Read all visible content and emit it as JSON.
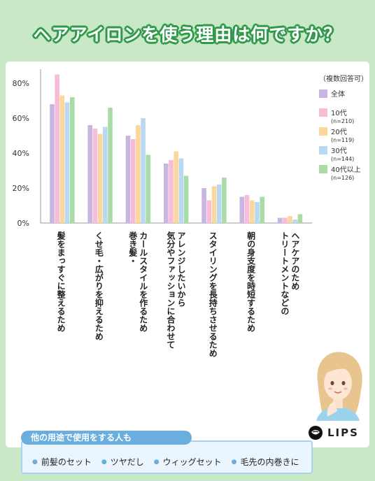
{
  "title": "ヘアアイロンを使う理由は何ですか？",
  "chart_data": {
    "type": "bar",
    "yticks": [
      "80%",
      "60%",
      "40%",
      "20%",
      "0%"
    ],
    "ylim": [
      0,
      90
    ],
    "legend": {
      "heading": "（複数回答可）",
      "placement": "top-right"
    },
    "categories": [
      [
        "髪をまっすぐに整えるため"
      ],
      [
        "くせ毛・広がりを抑えるため"
      ],
      [
        "巻き髪・",
        "カールスタイルを作るため"
      ],
      [
        "気分やファッションに合わせて",
        "アレンジしたいから"
      ],
      [
        "スタイリングを長持ちさせるため"
      ],
      [
        "朝の身支度を時短するため"
      ],
      [
        "トリートメントなどの",
        "ヘアケアのため"
      ]
    ],
    "series": [
      {
        "name": "全体",
        "sub": "",
        "color": "#c8b6e0",
        "values": [
          68,
          56,
          50,
          34,
          20,
          15,
          3
        ]
      },
      {
        "name": "10代",
        "sub": "(n=210)",
        "color": "#f7bcd8",
        "values": [
          85,
          54,
          48,
          36,
          13,
          16,
          3
        ]
      },
      {
        "name": "20代",
        "sub": "(n=119)",
        "color": "#fbd79b",
        "values": [
          73,
          51,
          56,
          41,
          21,
          13,
          4
        ]
      },
      {
        "name": "30代",
        "sub": "(n=144)",
        "color": "#b9d8f2",
        "values": [
          69,
          55,
          60,
          37,
          22,
          12,
          2
        ]
      },
      {
        "name": "40代以上",
        "sub": "(n=126)",
        "color": "#a9dca6",
        "values": [
          72,
          66,
          39,
          27,
          26,
          15,
          5
        ]
      }
    ]
  },
  "other_uses": {
    "header": "他の用途で使用をする人も",
    "items": [
      "前髪のセット",
      "ツヤだし",
      "ウィッグセット",
      "毛先の内巻きに"
    ]
  },
  "logo": {
    "text": "LIPS"
  }
}
